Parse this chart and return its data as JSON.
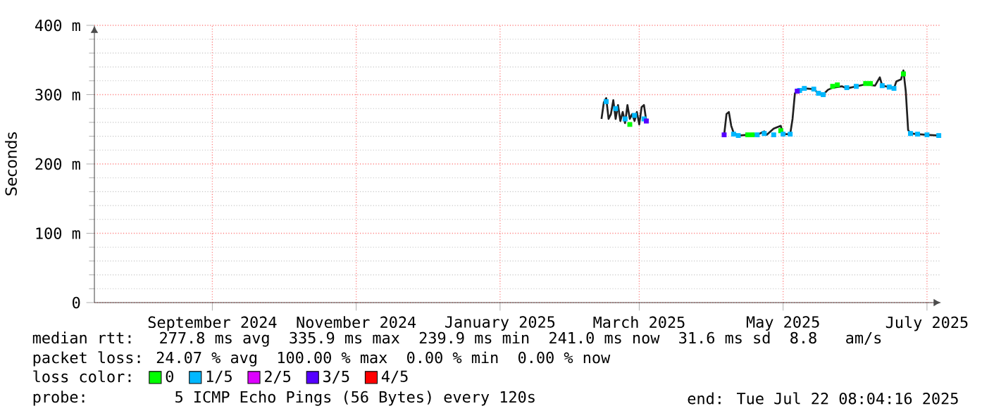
{
  "chart_data": {
    "type": "line",
    "ylabel": "Seconds",
    "legend_title": "loss color:",
    "legend": "bottom",
    "grid": true,
    "xlim": [
      "2024-07-28",
      "2025-07-22"
    ],
    "ylim": [
      0,
      400
    ],
    "xticks": [
      {
        "value": "2024-09-16",
        "label": "September 2024"
      },
      {
        "value": "2024-11-16",
        "label": "November 2024"
      },
      {
        "value": "2025-01-16",
        "label": "January 2025"
      },
      {
        "value": "2025-03-16",
        "label": "March 2025"
      },
      {
        "value": "2025-05-16",
        "label": "May 2025"
      },
      {
        "value": "2025-07-16",
        "label": "July 2025"
      }
    ],
    "yticks": [
      0,
      {
        "value": 100,
        "label": "100 m"
      },
      {
        "value": 200,
        "label": "200 m"
      },
      {
        "value": 300,
        "label": "300 m"
      },
      {
        "value": 400,
        "label": "400 m"
      }
    ],
    "series": [
      {
        "color": "#202020",
        "x": [
          "2025-02-28",
          "2025-03-01",
          "2025-03-02",
          "2025-03-03",
          "2025-03-04",
          "2025-03-05",
          "2025-03-06",
          "2025-03-07",
          "2025-03-08",
          "2025-03-09",
          "2025-03-10",
          "2025-03-11",
          "2025-03-12",
          "2025-03-13",
          "2025-03-14",
          "2025-03-15",
          "2025-03-16",
          "2025-03-17",
          "2025-03-18",
          "2025-03-19",
          "2025-04-01",
          "2025-04-21",
          "2025-04-22",
          "2025-04-23",
          "2025-04-24",
          "2025-04-25",
          "2025-04-27",
          "2025-05-01",
          "2025-05-05",
          "2025-05-08",
          "2025-05-09",
          "2025-05-12",
          "2025-05-15",
          "2025-05-16",
          "2025-05-19",
          "2025-05-20",
          "2025-05-21",
          "2025-05-23",
          "2025-05-25",
          "2025-05-29",
          "2025-05-31",
          "2025-06-02",
          "2025-06-04",
          "2025-06-06",
          "2025-06-10",
          "2025-06-12",
          "2025-06-16",
          "2025-06-20",
          "2025-06-24",
          "2025-06-26",
          "2025-06-27",
          "2025-06-30",
          "2025-07-02",
          "2025-07-03",
          "2025-07-05",
          "2025-07-06",
          "2025-07-07",
          "2025-07-08",
          "2025-07-09",
          "2025-07-12",
          "2025-07-16",
          "2025-07-21"
        ],
        "values": [
          265,
          289,
          295,
          265,
          272,
          292,
          265,
          285,
          262,
          275,
          259,
          285,
          265,
          272,
          262,
          275,
          257,
          282,
          285,
          262,
          null,
          242,
          272,
          275,
          255,
          245,
          241,
          242,
          242,
          247,
          242,
          251,
          255,
          243,
          243,
          265,
          302,
          305,
          309,
          308,
          302,
          300,
          307,
          310,
          312,
          309,
          312,
          315,
          313,
          325,
          313,
          311,
          309,
          319,
          322,
          335,
          305,
          249,
          244,
          243,
          242,
          241
        ]
      },
      {
        "type": "scatter",
        "marker": "square",
        "name": "0",
        "color": "#00ff00",
        "x": [
          "2025-03-12",
          "2025-05-01",
          "2025-05-03",
          "2025-05-15",
          "2025-06-06",
          "2025-06-08",
          "2025-06-20",
          "2025-06-22",
          "2025-07-06"
        ],
        "values": [
          257,
          242,
          242,
          248,
          312,
          314,
          316,
          316,
          330
        ]
      },
      {
        "type": "scatter",
        "marker": "square",
        "name": "1/5",
        "color": "#00b8ff",
        "x": [
          "2025-03-02",
          "2025-03-06",
          "2025-03-10",
          "2025-03-14",
          "2025-03-18",
          "2025-04-25",
          "2025-04-27",
          "2025-05-05",
          "2025-05-08",
          "2025-05-12",
          "2025-05-16",
          "2025-05-19",
          "2025-05-23",
          "2025-05-25",
          "2025-05-29",
          "2025-05-31",
          "2025-06-02",
          "2025-06-12",
          "2025-06-16",
          "2025-06-27",
          "2025-06-30",
          "2025-07-02",
          "2025-07-09",
          "2025-07-12",
          "2025-07-16",
          "2025-07-21"
        ],
        "values": [
          290,
          280,
          265,
          270,
          265,
          243,
          241,
          242,
          244,
          242,
          243,
          243,
          306,
          309,
          308,
          302,
          300,
          310,
          312,
          313,
          311,
          309,
          244,
          243,
          242,
          241
        ]
      },
      {
        "type": "scatter",
        "marker": "square",
        "name": "2/5",
        "color": "#dd00ff"
      },
      {
        "type": "scatter",
        "marker": "square",
        "name": "3/5",
        "color": "#5500ff",
        "x": [
          "2025-03-19",
          "2025-04-21",
          "2025-05-22"
        ],
        "values": [
          262,
          242,
          305
        ]
      },
      {
        "type": "scatter",
        "marker": "square",
        "name": "4/5",
        "color": "#ff0000"
      }
    ],
    "annotations": [
      "median rtt:  277.8 ms avg  335.9 ms max  239.9 ms min  241.0 ms now  31.6 ms sd  8.8   am/s",
      "packet loss: 24.07 % avg  100.00 % max  0.00 % min  0.00 % now",
      "probe:       5 ICMP Echo Pings (56 Bytes) every 120s",
      "end: Tue Jul 22 08:04:16 2025"
    ]
  }
}
